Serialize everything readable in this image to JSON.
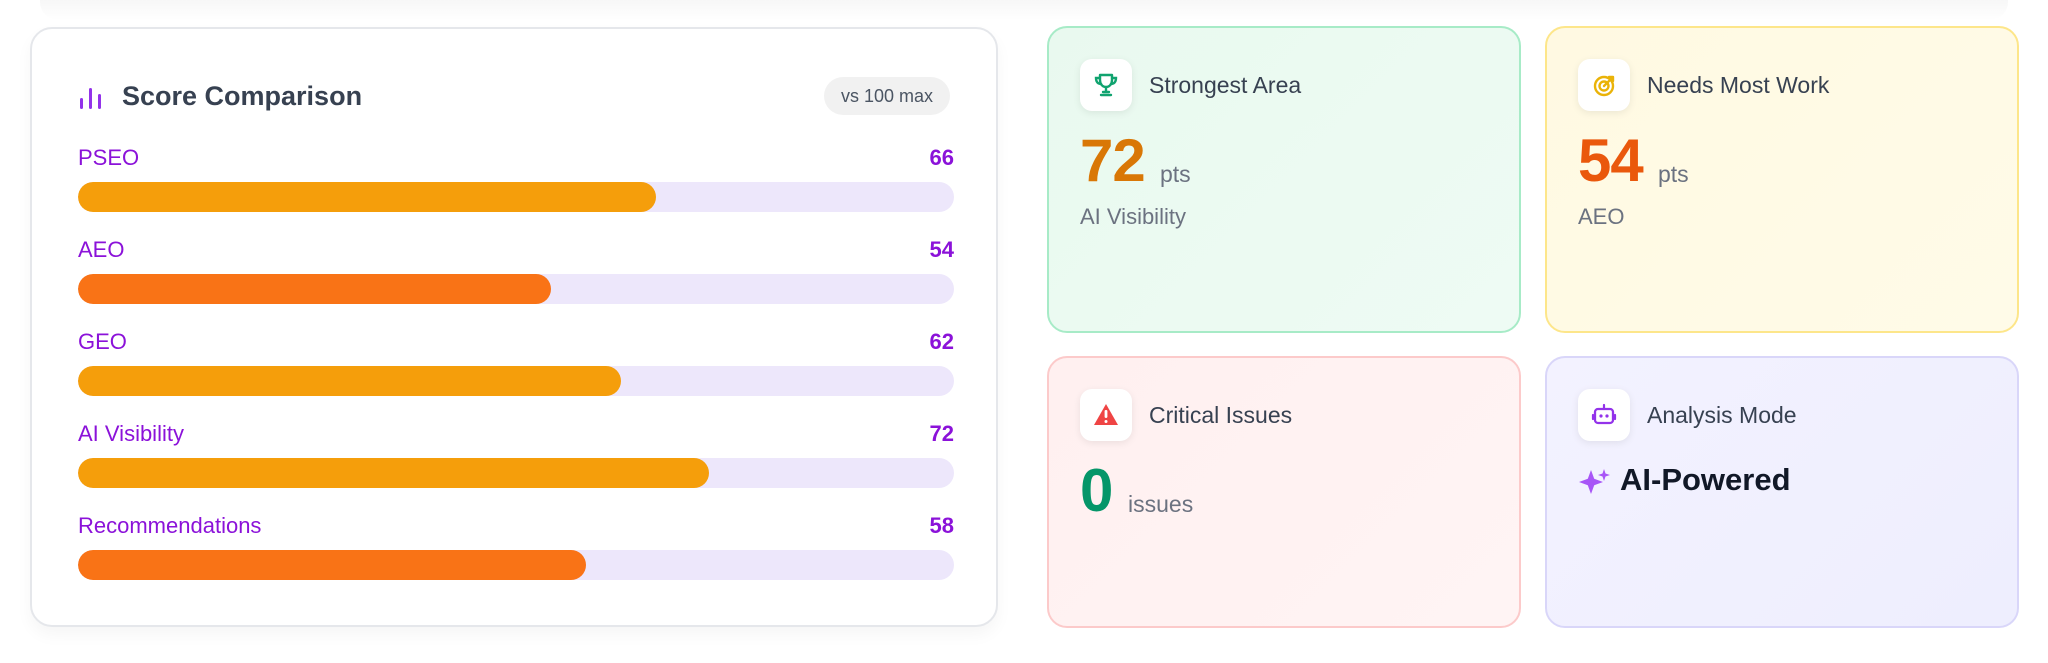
{
  "score_comparison": {
    "title": "Score Comparison",
    "max_badge": "vs 100 max",
    "max_score": 100,
    "items": [
      {
        "label": "PSEO",
        "value": 66,
        "value_text": "66",
        "color": "#f59e0b"
      },
      {
        "label": "AEO",
        "value": 54,
        "value_text": "54",
        "color": "#f97316"
      },
      {
        "label": "GEO",
        "value": 62,
        "value_text": "62",
        "color": "#f59e0b"
      },
      {
        "label": "AI Visibility",
        "value": 72,
        "value_text": "72",
        "color": "#f59e0b"
      },
      {
        "label": "Recommendations",
        "value": 58,
        "value_text": "58",
        "color": "#f97316"
      }
    ]
  },
  "strongest_area": {
    "title": "Strongest Area",
    "value": "72",
    "unit": "pts",
    "label": "AI Visibility",
    "icon": "trophy-icon",
    "accent_color": "#d97706"
  },
  "needs_most_work": {
    "title": "Needs Most Work",
    "value": "54",
    "unit": "pts",
    "label": "AEO",
    "icon": "target-icon",
    "accent_color": "#ea580c"
  },
  "critical_issues": {
    "title": "Critical Issues",
    "value": "0",
    "unit": "issues",
    "icon": "warning-icon",
    "accent_color": "#059669"
  },
  "analysis_mode": {
    "title": "Analysis Mode",
    "value": "AI-Powered",
    "icon": "robot-icon",
    "accent_color": "#8b12d9"
  }
}
